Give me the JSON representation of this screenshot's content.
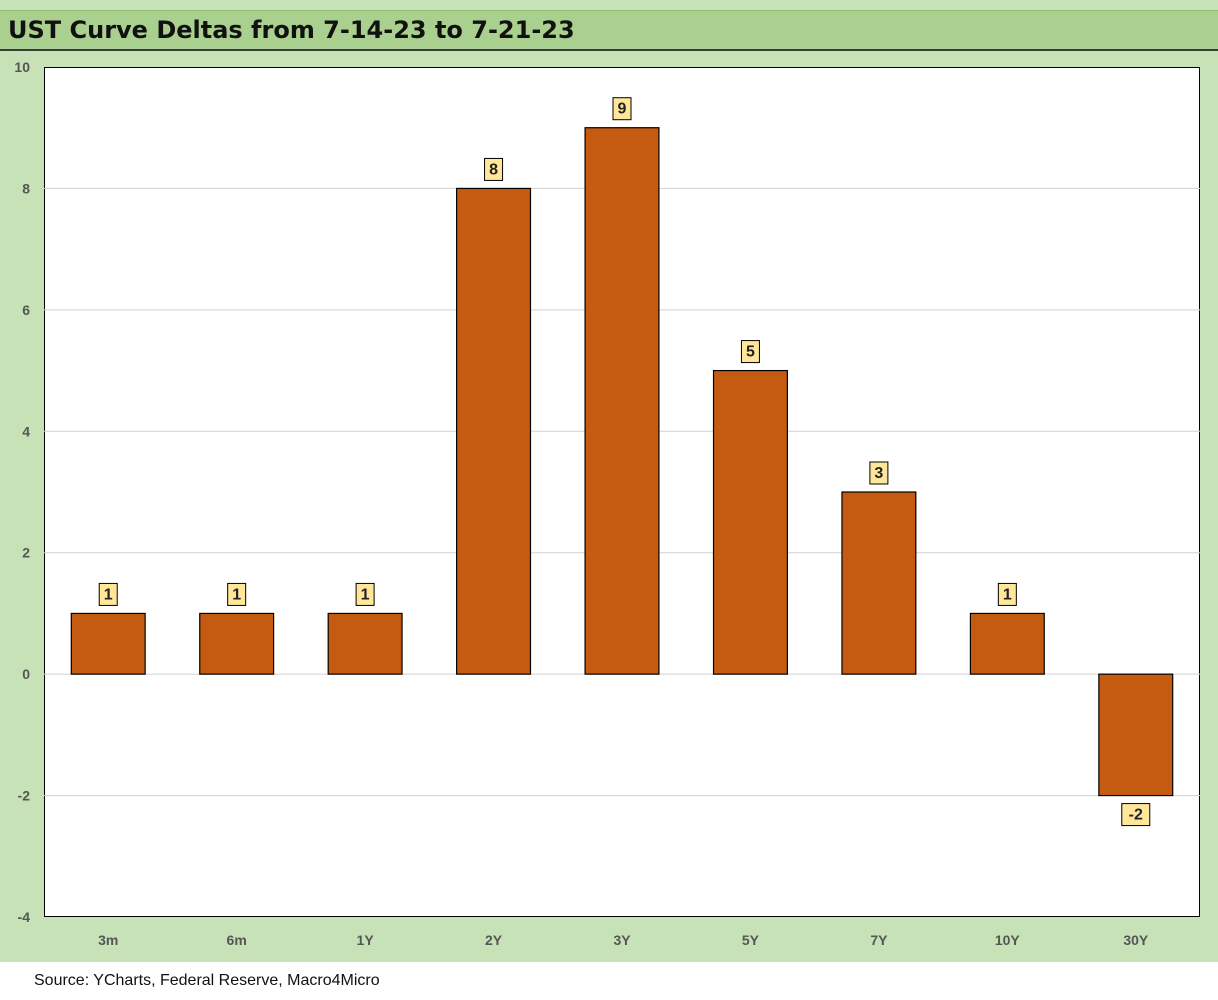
{
  "chart_data": {
    "type": "bar",
    "title": "UST Curve Deltas from 7-14-23 to 7-21-23",
    "categories": [
      "3m",
      "6m",
      "1Y",
      "2Y",
      "3Y",
      "5Y",
      "7Y",
      "10Y",
      "30Y"
    ],
    "values": [
      1,
      1,
      1,
      8,
      9,
      5,
      3,
      1,
      -2
    ],
    "ylim": [
      -4,
      10
    ],
    "yticks": [
      -4,
      -2,
      0,
      2,
      4,
      6,
      8,
      10
    ],
    "xlabel": "",
    "ylabel": "",
    "grid": true,
    "data_labels": true
  },
  "source": "Source: YCharts, Federal Reserve, Macro4Micro",
  "colors": {
    "bar": "#c55a11",
    "label_box": "#ffe699",
    "title_bar": "#a9d08e",
    "frame": "#c8e2b8",
    "grid": "#d0d0d0"
  }
}
